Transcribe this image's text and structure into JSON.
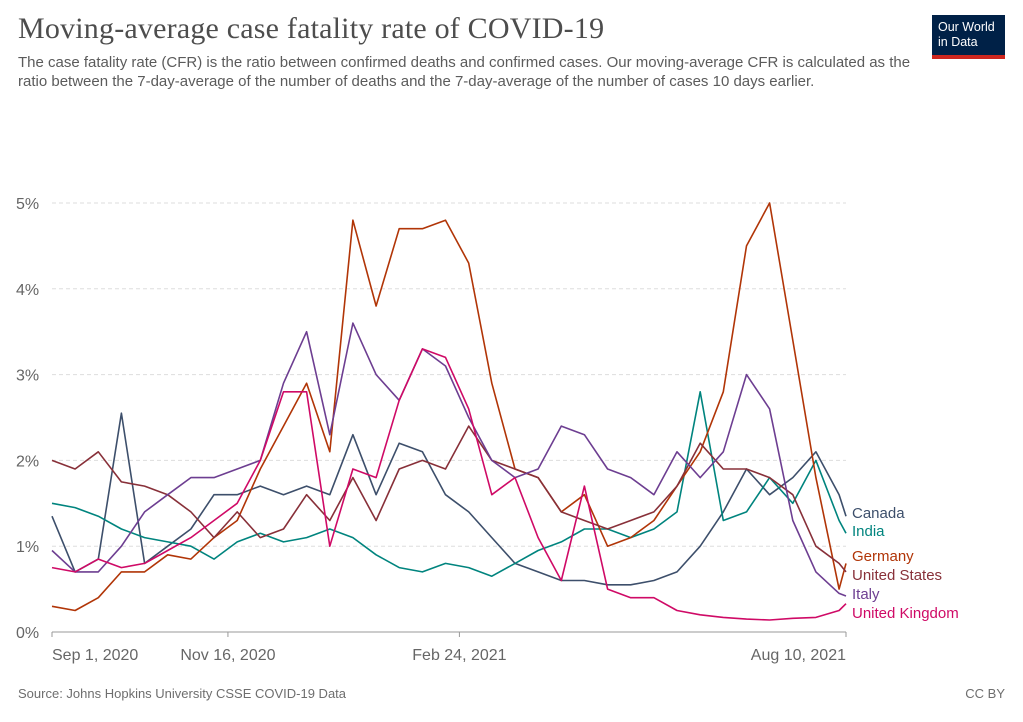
{
  "title": "Moving-average case fatality rate of COVID-19",
  "subtitle": "The case fatality rate (CFR) is the ratio between confirmed deaths and confirmed cases. Our moving-average CFR is calculated as the ratio between the 7-day-average of the number of deaths and the 7-day-average of the number of cases 10 days earlier.",
  "logo": {
    "line1": "Our World",
    "line2": "in Data",
    "bg": "#002147",
    "accent": "#ce261e"
  },
  "source": "Source: Johns Hopkins University CSSE COVID-19 Data",
  "license": "CC BY",
  "chart_data": {
    "type": "line",
    "title": "Moving-average case fatality rate of COVID-19",
    "xlabel": "",
    "ylabel": "",
    "ylim": [
      0,
      5.8
    ],
    "xlim": [
      "2020-09-01",
      "2021-08-10"
    ],
    "y_ticks": [
      {
        "v": 0,
        "label": "0%"
      },
      {
        "v": 1,
        "label": "1%"
      },
      {
        "v": 2,
        "label": "2%"
      },
      {
        "v": 3,
        "label": "3%"
      },
      {
        "v": 4,
        "label": "4%"
      },
      {
        "v": 5,
        "label": "5%"
      }
    ],
    "x_ticks": [
      {
        "date": "2020-09-01",
        "label": "Sep 1, 2020"
      },
      {
        "date": "2020-11-16",
        "label": "Nov 16, 2020"
      },
      {
        "date": "2021-02-24",
        "label": "Feb 24, 2021"
      },
      {
        "date": "2021-08-10",
        "label": "Aug 10, 2021"
      }
    ],
    "grid": "horizontal dashed",
    "legend": "right, labels at line ends",
    "x": [
      "2020-09-01",
      "2020-09-11",
      "2020-09-21",
      "2020-10-01",
      "2020-10-11",
      "2020-10-21",
      "2020-10-31",
      "2020-11-10",
      "2020-11-20",
      "2020-11-30",
      "2020-12-10",
      "2020-12-20",
      "2020-12-30",
      "2021-01-09",
      "2021-01-19",
      "2021-01-29",
      "2021-02-08",
      "2021-02-18",
      "2021-02-28",
      "2021-03-10",
      "2021-03-20",
      "2021-03-30",
      "2021-04-09",
      "2021-04-19",
      "2021-04-29",
      "2021-05-09",
      "2021-05-19",
      "2021-05-29",
      "2021-06-08",
      "2021-06-18",
      "2021-06-28",
      "2021-07-08",
      "2021-07-18",
      "2021-07-28",
      "2021-08-07",
      "2021-08-10"
    ],
    "series": [
      {
        "name": "Canada",
        "color": "#3d4f6b",
        "values": [
          1.35,
          0.7,
          0.85,
          2.55,
          0.8,
          1.0,
          1.2,
          1.6,
          1.6,
          1.7,
          1.6,
          1.7,
          1.6,
          2.3,
          1.6,
          2.2,
          2.1,
          1.6,
          1.4,
          1.1,
          0.8,
          0.7,
          0.6,
          0.6,
          0.55,
          0.55,
          0.6,
          0.7,
          1.0,
          1.4,
          1.9,
          1.6,
          1.8,
          2.1,
          1.6,
          1.35
        ]
      },
      {
        "name": "India",
        "color": "#00847e",
        "values": [
          1.5,
          1.45,
          1.35,
          1.2,
          1.1,
          1.05,
          1.0,
          0.85,
          1.05,
          1.15,
          1.05,
          1.1,
          1.2,
          1.1,
          0.9,
          0.75,
          0.7,
          0.8,
          0.75,
          0.65,
          0.8,
          0.95,
          1.05,
          1.2,
          1.2,
          1.1,
          1.2,
          1.4,
          2.8,
          1.3,
          1.4,
          1.8,
          1.5,
          2.0,
          1.3,
          1.15
        ]
      },
      {
        "name": "Germany",
        "color": "#b13507",
        "values": [
          0.3,
          0.25,
          0.4,
          0.7,
          0.7,
          0.9,
          0.85,
          1.1,
          1.3,
          1.9,
          2.4,
          2.9,
          2.1,
          4.8,
          3.8,
          4.7,
          4.7,
          4.8,
          4.3,
          2.9,
          1.9,
          1.8,
          1.4,
          1.6,
          1.0,
          1.1,
          1.3,
          1.7,
          2.1,
          2.8,
          4.5,
          5.0,
          3.4,
          1.8,
          0.5,
          0.8
        ]
      },
      {
        "name": "United States",
        "color": "#883039",
        "values": [
          2.0,
          1.9,
          2.1,
          1.75,
          1.7,
          1.6,
          1.4,
          1.1,
          1.4,
          1.1,
          1.2,
          1.6,
          1.3,
          1.8,
          1.3,
          1.9,
          2.0,
          1.9,
          2.4,
          2.0,
          1.9,
          1.8,
          1.4,
          1.3,
          1.2,
          1.3,
          1.4,
          1.7,
          2.2,
          1.9,
          1.9,
          1.8,
          1.6,
          1.0,
          0.8,
          0.7
        ]
      },
      {
        "name": "Italy",
        "color": "#6d3e91",
        "values": [
          0.95,
          0.7,
          0.7,
          1.0,
          1.4,
          1.6,
          1.8,
          1.8,
          1.9,
          2.0,
          2.9,
          3.5,
          2.3,
          3.6,
          3.0,
          2.7,
          3.3,
          3.1,
          2.5,
          2.0,
          1.8,
          1.9,
          2.4,
          2.3,
          1.9,
          1.8,
          1.6,
          2.1,
          1.8,
          2.1,
          3.0,
          2.6,
          1.3,
          0.7,
          0.45,
          0.42
        ]
      },
      {
        "name": "United Kingdom",
        "color": "#cf0a66",
        "values": [
          0.75,
          0.7,
          0.85,
          0.75,
          0.8,
          0.95,
          1.1,
          1.3,
          1.5,
          2.0,
          2.8,
          2.8,
          1.0,
          1.9,
          1.8,
          2.7,
          3.3,
          3.2,
          2.6,
          1.6,
          1.8,
          1.1,
          0.6,
          1.7,
          0.5,
          0.4,
          0.4,
          0.25,
          0.2,
          0.17,
          0.15,
          0.14,
          0.16,
          0.17,
          0.25,
          0.33
        ]
      }
    ]
  }
}
